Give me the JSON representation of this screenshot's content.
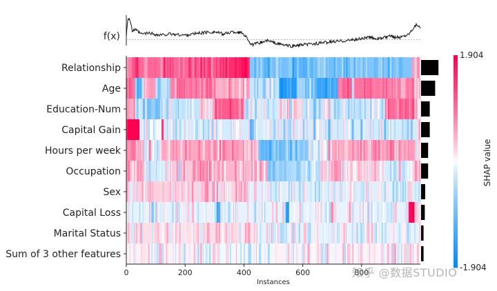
{
  "watermark": "知乎 @数据STUDIO",
  "chart_data": {
    "type": "heatmap",
    "title": "",
    "xlabel": "Instances",
    "xlim": [
      0,
      1000
    ],
    "xticks": [
      0,
      200,
      400,
      600,
      800
    ],
    "fx_label": "f(x)",
    "colorbar": {
      "label": "SHAP value",
      "max_label": "1.904",
      "min_label": "-1.904",
      "range": [
        -1.904,
        1.904
      ]
    },
    "colors": {
      "positive": "#ff0052",
      "neutral": "#ffffff",
      "negative": "#008bfa",
      "bar": "#000000"
    },
    "features": [
      {
        "name": "Relationship",
        "importance": 0.42
      },
      {
        "name": "Age",
        "importance": 0.34
      },
      {
        "name": "Education-Num",
        "importance": 0.21
      },
      {
        "name": "Capital Gain",
        "importance": 0.21
      },
      {
        "name": "Hours per week",
        "importance": 0.17
      },
      {
        "name": "Occupation",
        "importance": 0.17
      },
      {
        "name": "Sex",
        "importance": 0.1
      },
      {
        "name": "Capital Loss",
        "importance": 0.09
      },
      {
        "name": "Marital Status",
        "importance": 0.06
      },
      {
        "name": "Sum of 3 other features",
        "importance": 0.06
      }
    ],
    "segments": [
      [
        [
          0,
          10,
          0.4
        ],
        [
          10,
          45,
          1.2
        ],
        [
          45,
          230,
          1.0
        ],
        [
          230,
          350,
          1.1
        ],
        [
          350,
          420,
          1.5
        ],
        [
          420,
          440,
          -0.8
        ],
        [
          440,
          560,
          -0.9
        ],
        [
          560,
          640,
          -1.1
        ],
        [
          640,
          760,
          -0.9
        ],
        [
          760,
          980,
          -0.8
        ],
        [
          980,
          1000,
          0.3
        ]
      ],
      [
        [
          0,
          30,
          0.9
        ],
        [
          30,
          60,
          -0.6
        ],
        [
          60,
          100,
          0.6
        ],
        [
          100,
          150,
          -0.3
        ],
        [
          150,
          300,
          0.8
        ],
        [
          300,
          420,
          0.5
        ],
        [
          420,
          520,
          -0.3
        ],
        [
          520,
          580,
          -1.6
        ],
        [
          580,
          640,
          -0.6
        ],
        [
          640,
          720,
          -1.4
        ],
        [
          720,
          860,
          0.9
        ],
        [
          860,
          980,
          0.8
        ],
        [
          980,
          1000,
          0.2
        ]
      ],
      [
        [
          0,
          30,
          0.5
        ],
        [
          30,
          70,
          -0.3
        ],
        [
          70,
          120,
          -0.9
        ],
        [
          120,
          250,
          -0.3
        ],
        [
          250,
          300,
          0.3
        ],
        [
          300,
          400,
          1.1
        ],
        [
          400,
          520,
          -0.2
        ],
        [
          520,
          600,
          0.2
        ],
        [
          600,
          760,
          -0.3
        ],
        [
          760,
          880,
          -0.3
        ],
        [
          880,
          980,
          1.0
        ],
        [
          980,
          1000,
          0.2
        ]
      ],
      [
        [
          0,
          45,
          1.9
        ],
        [
          45,
          120,
          -0.05
        ],
        [
          120,
          127,
          1.5
        ],
        [
          127,
          420,
          -0.2
        ],
        [
          420,
          426,
          -1.4
        ],
        [
          426,
          990,
          -0.2
        ],
        [
          990,
          1000,
          0.2
        ]
      ],
      [
        [
          0,
          60,
          0.5
        ],
        [
          60,
          120,
          -0.3
        ],
        [
          120,
          260,
          0.5
        ],
        [
          260,
          400,
          0.6
        ],
        [
          400,
          450,
          0.2
        ],
        [
          450,
          540,
          -0.9
        ],
        [
          540,
          620,
          -0.8
        ],
        [
          620,
          700,
          -0.1
        ],
        [
          700,
          800,
          0.5
        ],
        [
          800,
          980,
          0.6
        ],
        [
          980,
          1000,
          0.2
        ]
      ],
      [
        [
          0,
          60,
          0.4
        ],
        [
          60,
          140,
          -0.2
        ],
        [
          140,
          240,
          0.3
        ],
        [
          240,
          300,
          0.6
        ],
        [
          300,
          480,
          0.4
        ],
        [
          480,
          570,
          -0.5
        ],
        [
          570,
          660,
          -0.4
        ],
        [
          660,
          760,
          0.3
        ],
        [
          760,
          860,
          0.3
        ],
        [
          860,
          980,
          -0.2
        ],
        [
          980,
          1000,
          0.2
        ]
      ],
      [
        [
          0,
          420,
          0.25
        ],
        [
          420,
          1000,
          -0.15
        ]
      ],
      [
        [
          0,
          420,
          -0.1
        ],
        [
          420,
          960,
          -0.1
        ],
        [
          960,
          980,
          1.8
        ],
        [
          980,
          1000,
          0.3
        ]
      ],
      [
        [
          0,
          440,
          0.15
        ],
        [
          440,
          1000,
          -0.1
        ]
      ],
      [
        [
          0,
          250,
          0.05
        ],
        [
          250,
          500,
          -0.05
        ],
        [
          500,
          1000,
          0.05
        ]
      ]
    ],
    "spikes": [
      [
        [
          130,
          1.6
        ],
        [
          215,
          1.5
        ],
        [
          255,
          1.6
        ],
        [
          280,
          1.4
        ],
        [
          340,
          1.7
        ],
        [
          395,
          1.8
        ],
        [
          405,
          1.9
        ],
        [
          800,
          -0.5
        ],
        [
          975,
          0.6
        ]
      ],
      [
        [
          40,
          -1.4
        ],
        [
          48,
          -1.2
        ],
        [
          110,
          -0.9
        ],
        [
          300,
          0.9
        ],
        [
          470,
          -0.8
        ],
        [
          610,
          -1.0
        ],
        [
          740,
          1.1
        ],
        [
          770,
          -0.4
        ],
        [
          820,
          1.0
        ],
        [
          930,
          0.9
        ]
      ],
      [
        [
          60,
          -1.0
        ],
        [
          140,
          -0.7
        ],
        [
          170,
          -0.4
        ],
        [
          410,
          -0.6
        ],
        [
          440,
          -0.7
        ],
        [
          560,
          -0.6
        ],
        [
          640,
          -0.9
        ],
        [
          690,
          0.5
        ],
        [
          930,
          1.1
        ],
        [
          945,
          0.9
        ]
      ],
      [
        [
          170,
          -0.6
        ],
        [
          240,
          -0.5
        ],
        [
          430,
          -1.0
        ],
        [
          640,
          -1.0
        ],
        [
          690,
          -1.1
        ],
        [
          770,
          -1.0
        ],
        [
          800,
          -1.0
        ],
        [
          880,
          -1.0
        ],
        [
          970,
          -0.8
        ]
      ],
      [
        [
          80,
          0.9
        ],
        [
          160,
          0.7
        ],
        [
          300,
          0.8
        ],
        [
          330,
          0.9
        ],
        [
          460,
          -1.1
        ],
        [
          560,
          -1.2
        ],
        [
          690,
          0.9
        ],
        [
          860,
          0.9
        ]
      ],
      [
        [
          40,
          0.7
        ],
        [
          180,
          -0.6
        ],
        [
          230,
          0.8
        ],
        [
          500,
          -0.9
        ],
        [
          540,
          -0.8
        ],
        [
          590,
          -0.6
        ],
        [
          710,
          0.7
        ],
        [
          930,
          0.6
        ]
      ],
      [
        [
          360,
          0.2
        ],
        [
          500,
          -0.2
        ],
        [
          800,
          -0.3
        ]
      ],
      [
        [
          90,
          -0.8
        ],
        [
          310,
          -1.4
        ],
        [
          316,
          -1.2
        ],
        [
          545,
          -1.5
        ],
        [
          550,
          -1.6
        ],
        [
          700,
          0.8
        ],
        [
          760,
          0.6
        ]
      ],
      [
        [
          360,
          0.3
        ],
        [
          500,
          -0.3
        ],
        [
          700,
          -0.2
        ]
      ],
      [
        [
          300,
          0.3
        ],
        [
          600,
          -0.3
        ],
        [
          800,
          0.3
        ]
      ]
    ],
    "fx_curve": [
      [
        0,
        0.2
      ],
      [
        5,
        0.95
      ],
      [
        12,
        0.9
      ],
      [
        20,
        0.4
      ],
      [
        30,
        0.45
      ],
      [
        50,
        0.25
      ],
      [
        80,
        0.3
      ],
      [
        110,
        0.2
      ],
      [
        150,
        0.25
      ],
      [
        200,
        0.2
      ],
      [
        250,
        0.3
      ],
      [
        300,
        0.35
      ],
      [
        330,
        0.25
      ],
      [
        360,
        0.35
      ],
      [
        395,
        0.3
      ],
      [
        410,
        0.1
      ],
      [
        425,
        -0.25
      ],
      [
        450,
        -0.15
      ],
      [
        480,
        -0.05
      ],
      [
        520,
        -0.2
      ],
      [
        560,
        -0.3
      ],
      [
        590,
        -0.25
      ],
      [
        630,
        -0.2
      ],
      [
        660,
        -0.15
      ],
      [
        700,
        -0.1
      ],
      [
        740,
        -0.05
      ],
      [
        780,
        0.0
      ],
      [
        820,
        0.1
      ],
      [
        860,
        0.05
      ],
      [
        900,
        0.15
      ],
      [
        930,
        0.1
      ],
      [
        960,
        0.25
      ],
      [
        980,
        0.6
      ],
      [
        990,
        0.7
      ],
      [
        1000,
        0.5
      ]
    ],
    "fx_baseline": 0.0
  }
}
